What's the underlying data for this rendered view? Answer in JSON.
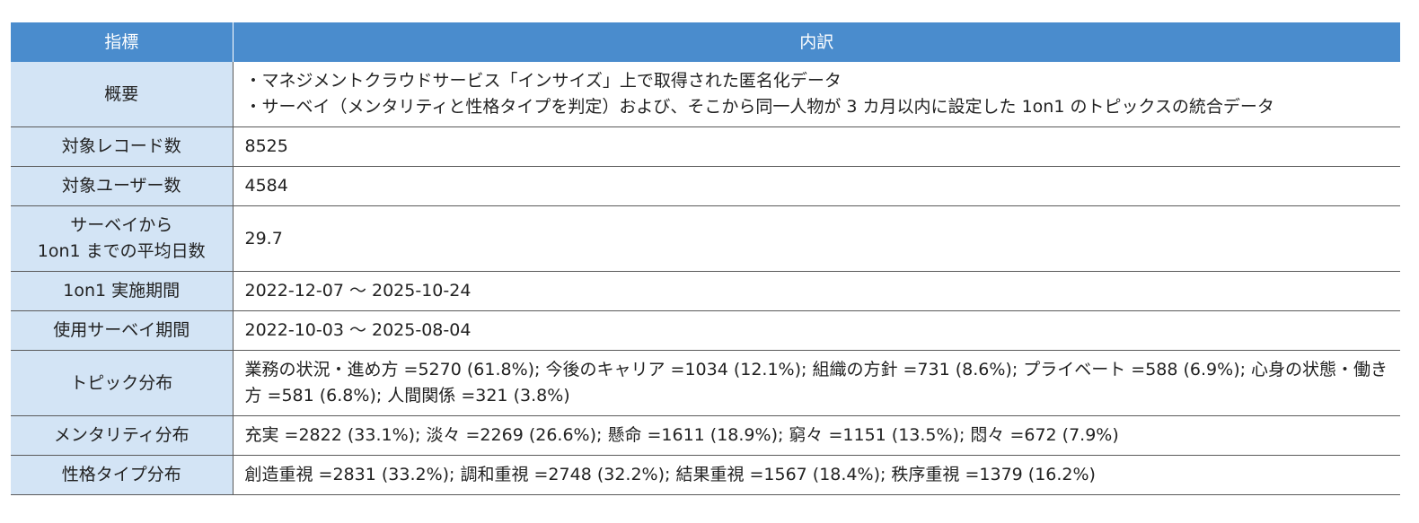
{
  "table": {
    "headers": {
      "label": "指標",
      "detail": "内訳"
    },
    "rows": [
      {
        "label": "概要",
        "lines": [
          "・マネジメントクラウドサービス「インサイズ」上で取得された匿名化データ",
          "・サーベイ（メンタリティと性格タイプを判定）および、そこから同一人物が 3 カ月以内に設定した 1on1 のトピックスの統合データ"
        ]
      },
      {
        "label": "対象レコード数",
        "value": "8525"
      },
      {
        "label": "対象ユーザー数",
        "value": "4584"
      },
      {
        "label_lines": [
          "サーベイから",
          "1on1 までの平均日数"
        ],
        "value": "29.7"
      },
      {
        "label": "1on1 実施期間",
        "value": "2022-12-07 ～ 2025-10-24"
      },
      {
        "label": "使用サーベイ期間",
        "value": "2022-10-03 ～ 2025-08-04"
      },
      {
        "label": "トピック分布",
        "value": "業務の状況・進め方 =5270 (61.8%); 今後のキャリア =1034 (12.1%); 組織の方針 =731 (8.6%); プライベート =588 (6.9%); 心身の状態・働き方 =581 (6.8%); 人間関係 =321 (3.8%)"
      },
      {
        "label": "メンタリティ分布",
        "value": "充実 =2822 (33.1%); 淡々 =2269 (26.6%); 懸命 =1611 (18.9%); 窮々 =1151 (13.5%); 悶々 =672 (7.9%)"
      },
      {
        "label": "性格タイプ分布",
        "value": "創造重視 =2831 (33.2%); 調和重視 =2748 (32.2%); 結果重視 =1567 (18.4%); 秩序重視 =1379 (16.2%)"
      }
    ]
  }
}
